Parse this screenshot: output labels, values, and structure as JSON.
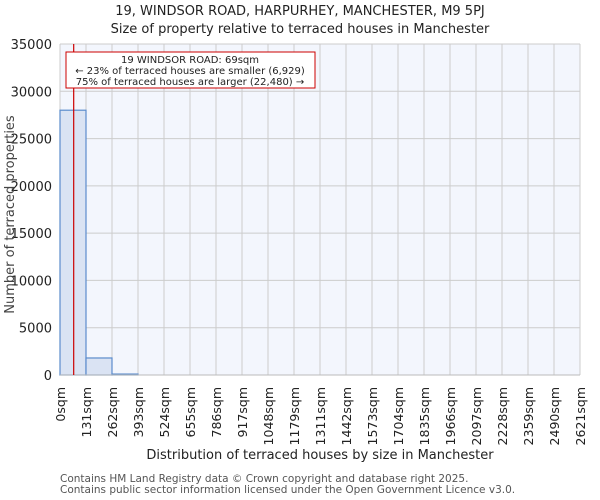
{
  "header": {
    "title": "19, WINDSOR ROAD, HARPURHEY, MANCHESTER, M9 5PJ",
    "subtitle": "Size of property relative to terraced houses in Manchester"
  },
  "annotation": {
    "line1": "19 WINDSOR ROAD: 69sqm",
    "line2": "← 23% of terraced houses are smaller (6,929)",
    "line3": "75% of terraced houses are larger (22,480) →"
  },
  "footer": {
    "line1": "Contains HM Land Registry data © Crown copyright and database right 2025.",
    "line2": "Contains public sector information licensed under the Open Government Licence v3.0."
  },
  "colors": {
    "bar_fill": "#dae3f3",
    "bar_edge": "#5b8ccc",
    "plot_bg": "#f3f6fd",
    "grid": "#cccccc",
    "marker": "#cc0000"
  },
  "chart_data": {
    "type": "bar",
    "title": "19, WINDSOR ROAD, HARPURHEY, MANCHESTER, M9 5PJ",
    "subtitle": "Size of property relative to terraced houses in Manchester",
    "xlabel": "Distribution of terraced houses by size in Manchester",
    "ylabel": "Number of terraced properties",
    "categories": [
      "0sqm",
      "131sqm",
      "262sqm",
      "393sqm",
      "524sqm",
      "655sqm",
      "786sqm",
      "917sqm",
      "1048sqm",
      "1179sqm",
      "1311sqm",
      "1442sqm",
      "1573sqm",
      "1704sqm",
      "1835sqm",
      "1966sqm",
      "2097sqm",
      "2228sqm",
      "2359sqm",
      "2490sqm",
      "2621sqm"
    ],
    "values": [
      28000,
      1800,
      100,
      0,
      0,
      0,
      0,
      0,
      0,
      0,
      0,
      0,
      0,
      0,
      0,
      0,
      0,
      0,
      0,
      0
    ],
    "yticks": [
      0,
      5000,
      10000,
      15000,
      20000,
      25000,
      30000,
      35000
    ],
    "ylim": [
      0,
      35000
    ],
    "grid": true,
    "marker": {
      "value_sqm": 69,
      "label": "19 WINDSOR ROAD: 69sqm"
    }
  }
}
